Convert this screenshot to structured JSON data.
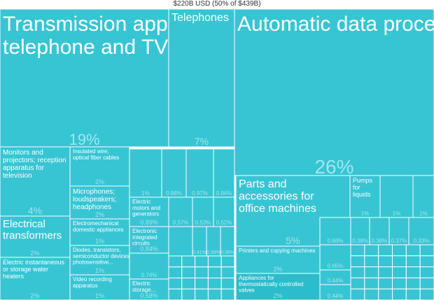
{
  "chart_data": {
    "type": "treemap",
    "title": "$220B USD (50% of $439B)",
    "colors": {
      "tile": "#37c5d4",
      "highlight": "#2bbdcc",
      "border": "#ffffff"
    },
    "tiles": [
      {
        "id": "transmission",
        "label": "Transmission apparatus for radio, telephone and TV",
        "pct": "19%",
        "share": 19
      },
      {
        "id": "telephones",
        "label": "Telephones",
        "pct": "7%",
        "share": 7
      },
      {
        "id": "adp",
        "label": "Automatic data processing machines",
        "pct": "26%",
        "share": 26
      },
      {
        "id": "monitors",
        "label": "Monitors and projectors; reception apparatus for television",
        "pct": "4%",
        "share": 4
      },
      {
        "id": "insulated-wire",
        "label": "Insulated wire; optical fiber cables",
        "pct": "2%",
        "share": 2
      },
      {
        "id": "microphones",
        "label": "Microphones; loudspeakers; headphones",
        "pct": "2%",
        "share": 2
      },
      {
        "id": "electromechanical",
        "label": "Electromechanical domestic appliances",
        "pct": "1%",
        "share": 1
      },
      {
        "id": "diodes",
        "label": "Diodes, transistors, semiconductor devices; photosensitive...",
        "pct": "1%",
        "share": 1
      },
      {
        "id": "video-recording",
        "label": "Video recording apparatus",
        "pct": "1%",
        "share": 1
      },
      {
        "id": "electrical-transformers",
        "label": "Electrical transformers",
        "pct": "2%",
        "share": 2
      },
      {
        "id": "water-heaters",
        "label": "Electric instantaneous or storage water heaters",
        "pct": "2%",
        "share": 2
      },
      {
        "id": "motors",
        "label": "Electric motors and generators",
        "pct": "0.89%",
        "share": 0.89
      },
      {
        "id": "integrated-circuits",
        "label": "Electronic integrated circuits",
        "pct": "0.84%",
        "share": 0.84
      },
      {
        "id": "storage-batteries",
        "label": "Electric storage...",
        "pct": "0.68%",
        "share": 0.68
      },
      {
        "id": "u1",
        "label": "",
        "pct": "1%",
        "share": 1
      },
      {
        "id": "u2",
        "label": "",
        "pct": "0.98%",
        "share": 0.98
      },
      {
        "id": "u3",
        "label": "",
        "pct": "0.97%",
        "share": 0.97
      },
      {
        "id": "u4",
        "label": "",
        "pct": "0.94%",
        "share": 0.94
      },
      {
        "id": "u5",
        "label": "",
        "pct": "0.57%",
        "share": 0.57
      },
      {
        "id": "u6",
        "label": "",
        "pct": "0.53%",
        "share": 0.53
      },
      {
        "id": "u7",
        "label": "",
        "pct": "0.52%",
        "share": 0.52
      },
      {
        "id": "u8",
        "label": "",
        "pct": "0.74%",
        "share": 0.74
      },
      {
        "id": "u9",
        "label": "",
        "pct": "0.33%",
        "share": 0.33
      },
      {
        "id": "u10",
        "label": "",
        "pct": "0.41%",
        "share": 0.41
      },
      {
        "id": "u11",
        "label": "",
        "pct": "0.38%",
        "share": 0.38
      },
      {
        "id": "u12",
        "label": "",
        "pct": "0.38%",
        "share": 0.38
      },
      {
        "id": "parts-office",
        "label": "Parts and accessories for office machines",
        "pct": "5%",
        "share": 5
      },
      {
        "id": "pumps",
        "label": "Pumps for liquids",
        "pct": "1%",
        "share": 1
      },
      {
        "id": "u13",
        "label": "",
        "pct": "1%",
        "share": 1
      },
      {
        "id": "u14",
        "label": "",
        "pct": "1%",
        "share": 1
      },
      {
        "id": "u15",
        "label": "",
        "pct": "0.89%",
        "share": 0.89
      },
      {
        "id": "u16",
        "label": "",
        "pct": "0.69%",
        "share": 0.69
      },
      {
        "id": "printers",
        "label": "Printers and copying machines",
        "pct": "2%",
        "share": 2
      },
      {
        "id": "thermostatic-valves",
        "label": "Appliances for thermostatically controlled valves",
        "pct": "2%",
        "share": 2
      },
      {
        "id": "u17",
        "label": "",
        "pct": "0.68%",
        "share": 0.68
      },
      {
        "id": "u18",
        "label": "",
        "pct": "0.65%",
        "share": 0.65
      },
      {
        "id": "u19",
        "label": "",
        "pct": "0.44%",
        "share": 0.44
      },
      {
        "id": "u20",
        "label": "",
        "pct": "0.44%",
        "share": 0.44
      },
      {
        "id": "u21",
        "label": "",
        "pct": "0.38%",
        "share": 0.38
      },
      {
        "id": "u22",
        "label": "",
        "pct": "0.38%",
        "share": 0.38
      },
      {
        "id": "u23",
        "label": "",
        "pct": "0.37%",
        "share": 0.37
      },
      {
        "id": "u24",
        "label": "",
        "pct": "0.33%",
        "share": 0.33
      }
    ]
  }
}
